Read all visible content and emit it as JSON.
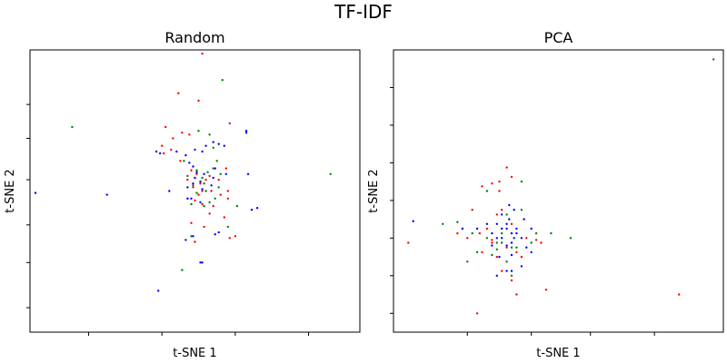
{
  "figure": {
    "title": "TF-IDF"
  },
  "chart_data": [
    {
      "type": "scatter",
      "title": "Random",
      "xlabel": "t-SNE 1",
      "ylabel": "t-SNE 2",
      "xlim": [
        -4.6,
        4.4
      ],
      "ylim": [
        -3.75,
        3.75
      ],
      "xticks": [
        -3,
        -1,
        1,
        3
      ],
      "yticks": [
        -3.1,
        -1.9,
        -0.9,
        0.3,
        1.4,
        2.3
      ],
      "grid": false,
      "series": [
        {
          "color": "#ff0000",
          "points": [
            [
              0.1,
              3.65
            ],
            [
              -0.55,
              2.6
            ],
            [
              0.0,
              2.4
            ],
            [
              -0.9,
              1.7
            ],
            [
              0.85,
              1.8
            ],
            [
              -0.25,
              1.5
            ],
            [
              -0.45,
              1.55
            ],
            [
              -0.7,
              1.4
            ],
            [
              -1.0,
              1.2
            ],
            [
              -0.75,
              1.1
            ],
            [
              -0.95,
              1.0
            ],
            [
              -0.5,
              0.8
            ],
            [
              0.75,
              0.6
            ],
            [
              -0.2,
              0.55
            ],
            [
              -0.05,
              0.45
            ],
            [
              0.3,
              0.4
            ],
            [
              0.2,
              0.3
            ],
            [
              -0.3,
              0.3
            ],
            [
              0.55,
              0.3
            ],
            [
              0.05,
              0.2
            ],
            [
              -0.15,
              0.1
            ],
            [
              0.1,
              0.0
            ],
            [
              0.35,
              0.0
            ],
            [
              0.8,
              0.0
            ],
            [
              0.6,
              -0.1
            ],
            [
              0.8,
              -0.2
            ],
            [
              -0.3,
              -0.2
            ],
            [
              0.0,
              -0.1
            ],
            [
              -0.1,
              -0.25
            ],
            [
              0.1,
              -0.35
            ],
            [
              0.4,
              -0.4
            ],
            [
              0.3,
              -0.6
            ],
            [
              0.7,
              -0.7
            ],
            [
              -0.2,
              -0.85
            ],
            [
              0.15,
              -0.95
            ],
            [
              0.85,
              -1.25
            ],
            [
              -0.1,
              -1.35
            ],
            [
              1.0,
              -1.2
            ]
          ]
        },
        {
          "color": "#008000",
          "points": [
            [
              -3.45,
              1.7
            ],
            [
              0.65,
              2.95
            ],
            [
              0.0,
              1.6
            ],
            [
              0.4,
              1.15
            ],
            [
              0.3,
              1.5
            ],
            [
              -0.4,
              0.8
            ],
            [
              0.5,
              0.8
            ],
            [
              0.4,
              0.6
            ],
            [
              0.6,
              0.45
            ],
            [
              0.1,
              0.35
            ],
            [
              -0.05,
              0.55
            ],
            [
              0.25,
              0.5
            ],
            [
              -0.3,
              0.4
            ],
            [
              0.15,
              0.2
            ],
            [
              0.55,
              0.1
            ],
            [
              -0.15,
              0.15
            ],
            [
              0.2,
              0.0
            ],
            [
              -0.05,
              -0.05
            ],
            [
              0.45,
              -0.2
            ],
            [
              -0.2,
              -0.35
            ],
            [
              0.15,
              -0.4
            ],
            [
              0.3,
              -0.3
            ],
            [
              1.05,
              -0.4
            ],
            [
              0.8,
              -0.95
            ],
            [
              -0.2,
              -1.2
            ],
            [
              -0.45,
              -2.1
            ],
            [
              3.6,
              0.45
            ]
          ]
        },
        {
          "color": "#0000ff",
          "points": [
            [
              -4.45,
              -0.05
            ],
            [
              -2.5,
              -0.1
            ],
            [
              -1.1,
              -2.65
            ],
            [
              -1.05,
              1.0
            ],
            [
              -1.15,
              1.05
            ],
            [
              -0.6,
              1.05
            ],
            [
              -0.35,
              0.95
            ],
            [
              -0.15,
              0.65
            ],
            [
              1.3,
              1.55
            ],
            [
              1.3,
              1.6
            ],
            [
              0.55,
              1.25
            ],
            [
              0.7,
              1.2
            ],
            [
              -0.1,
              1.1
            ],
            [
              0.1,
              1.05
            ],
            [
              0.2,
              1.2
            ],
            [
              0.4,
              1.3
            ],
            [
              -0.25,
              0.75
            ],
            [
              -0.05,
              0.5
            ],
            [
              0.45,
              0.6
            ],
            [
              0.75,
              0.45
            ],
            [
              0.15,
              0.45
            ],
            [
              -0.1,
              0.35
            ],
            [
              0.05,
              0.25
            ],
            [
              0.4,
              0.35
            ],
            [
              -0.15,
              0.2
            ],
            [
              0.35,
              0.15
            ],
            [
              -0.3,
              0.1
            ],
            [
              0.1,
              0.05
            ],
            [
              -0.2,
              -0.2
            ],
            [
              0.05,
              -0.3
            ],
            [
              1.35,
              0.45
            ],
            [
              1.45,
              -0.5
            ],
            [
              1.6,
              -0.45
            ],
            [
              -0.8,
              0.0
            ],
            [
              -0.3,
              -0.2
            ],
            [
              0.45,
              -1.15
            ],
            [
              0.55,
              -1.1
            ],
            [
              -0.15,
              -1.2
            ],
            [
              -0.35,
              -1.3
            ],
            [
              0.05,
              -1.9
            ],
            [
              0.1,
              -1.9
            ]
          ]
        }
      ]
    },
    {
      "type": "scatter",
      "title": "PCA",
      "xlabel": "t-SNE 1",
      "ylabel": "t-SNE 2",
      "xlim": [
        -2.3,
        4.4
      ],
      "ylim": [
        -1.6,
        1.4
      ],
      "xticks": [
        -0.8,
        0.5,
        1.7,
        3.0
      ],
      "yticks": [
        -1.4,
        -1.0,
        -0.6,
        -0.2,
        0.2,
        0.6,
        1.0
      ],
      "grid": false,
      "series": [
        {
          "color": "#ff0000",
          "points": [
            [
              -2.0,
              -0.65
            ],
            [
              -1.0,
              -0.55
            ],
            [
              -0.8,
              -0.6
            ],
            [
              -0.3,
              -0.65
            ],
            [
              -0.2,
              -0.35
            ],
            [
              -0.1,
              -0.3
            ],
            [
              -0.4,
              -0.5
            ],
            [
              0.1,
              -0.45
            ],
            [
              -0.3,
              -0.62
            ],
            [
              0.0,
              -0.7
            ],
            [
              0.2,
              -0.75
            ],
            [
              0.3,
              -0.8
            ],
            [
              -0.2,
              -0.8
            ],
            [
              0.4,
              -0.6
            ],
            [
              -0.5,
              -0.75
            ],
            [
              0.6,
              -0.62
            ],
            [
              0.7,
              -0.65
            ],
            [
              -0.1,
              -0.95
            ],
            [
              0.1,
              -1.05
            ],
            [
              0.2,
              -1.2
            ],
            [
              0.8,
              -1.15
            ],
            [
              -0.6,
              -1.4
            ],
            [
              3.5,
              -1.2
            ],
            [
              -0.5,
              -0.05
            ],
            [
              -0.3,
              -0.02
            ],
            [
              -0.15,
              0.0
            ],
            [
              -0.15,
              -0.1
            ],
            [
              0.0,
              0.15
            ],
            [
              0.1,
              0.05
            ],
            [
              -0.7,
              -0.3
            ],
            [
              -0.55,
              -0.55
            ]
          ]
        },
        {
          "color": "#008000",
          "points": [
            [
              4.2,
              1.3
            ],
            [
              -0.4,
              -0.1
            ],
            [
              0.3,
              0.0
            ],
            [
              -1.3,
              -0.45
            ],
            [
              -1.0,
              -0.43
            ],
            [
              -0.9,
              -0.5
            ],
            [
              -0.7,
              -0.55
            ],
            [
              -0.4,
              -0.6
            ],
            [
              -0.1,
              -0.65
            ],
            [
              0.6,
              -0.55
            ],
            [
              0.9,
              -0.55
            ],
            [
              1.3,
              -0.6
            ],
            [
              -0.6,
              -0.75
            ],
            [
              -0.3,
              -0.78
            ],
            [
              -0.2,
              -0.72
            ],
            [
              0.1,
              -0.7
            ],
            [
              0.0,
              -0.85
            ],
            [
              -0.8,
              -0.85
            ],
            [
              0.1,
              -1.0
            ],
            [
              -0.1,
              -0.55
            ],
            [
              0.1,
              -0.55
            ],
            [
              0.5,
              -0.65
            ],
            [
              0.2,
              -0.7
            ],
            [
              -0.2,
              -0.65
            ],
            [
              0.0,
              -0.35
            ],
            [
              0.3,
              -0.3
            ]
          ]
        },
        {
          "color": "#0000ff",
          "points": [
            [
              -1.9,
              -0.42
            ],
            [
              -0.9,
              -0.5
            ],
            [
              -0.6,
              -0.5
            ],
            [
              -0.4,
              -0.45
            ],
            [
              -0.3,
              -0.55
            ],
            [
              -0.2,
              -0.45
            ],
            [
              -0.1,
              -0.5
            ],
            [
              0.0,
              -0.45
            ],
            [
              0.05,
              -0.4
            ],
            [
              0.1,
              -0.55
            ],
            [
              0.15,
              -0.6
            ],
            [
              0.2,
              -0.55
            ],
            [
              -0.2,
              -0.6
            ],
            [
              0.3,
              -0.6
            ],
            [
              -0.3,
              -0.68
            ],
            [
              0.4,
              -0.7
            ],
            [
              0.0,
              -0.68
            ],
            [
              0.1,
              -0.78
            ],
            [
              -0.15,
              -0.8
            ],
            [
              0.3,
              -0.9
            ],
            [
              0.0,
              -0.95
            ],
            [
              0.1,
              -0.95
            ],
            [
              -0.2,
              -1.0
            ],
            [
              0.0,
              -0.5
            ],
            [
              0.2,
              -0.5
            ],
            [
              0.1,
              -0.65
            ],
            [
              -0.1,
              -0.6
            ],
            [
              0.5,
              -0.5
            ],
            [
              0.35,
              -0.4
            ],
            [
              0.5,
              -0.75
            ],
            [
              -0.1,
              -0.35
            ],
            [
              0.05,
              -0.25
            ],
            [
              0.15,
              -0.3
            ]
          ]
        }
      ]
    }
  ]
}
